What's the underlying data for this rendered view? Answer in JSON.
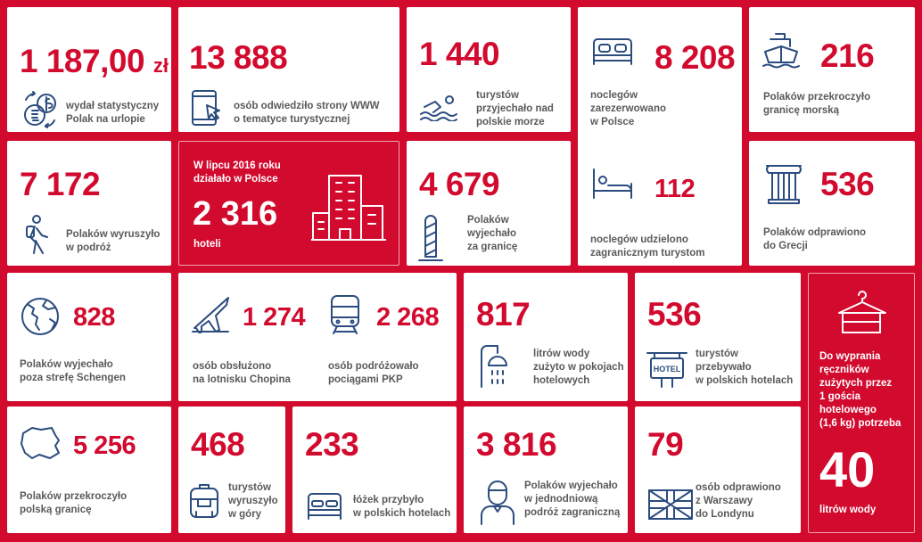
{
  "colors": {
    "accent": "#d20a2e",
    "icon": "#2b4c7e",
    "text": "#5a5a5a"
  },
  "tiles": {
    "t1": {
      "value": "1 187,00",
      "currency": "zł",
      "icon": "money-exchange-icon",
      "text": [
        "wydał statystyczny",
        "Polak na urlopie"
      ]
    },
    "t2": {
      "value": "13 888",
      "icon": "tablet-click-icon",
      "text": [
        "osób odwiedziło strony WWW",
        "o tematyce turystycznej"
      ]
    },
    "t3": {
      "value": "1 440",
      "icon": "swimmer-icon",
      "text": [
        "turystów",
        "przyjechało nad",
        "polskie morze"
      ]
    },
    "t4": {
      "value": "8 208",
      "icon": "bed-icon",
      "text": [
        "noclegów",
        "zarezerwowano",
        "w Polsce"
      ]
    },
    "t5": {
      "value": "216",
      "icon": "ship-icon",
      "text": [
        "Polaków przekroczyło",
        "granicę morską"
      ]
    },
    "t6": {
      "value": "7 172",
      "icon": "hiker-icon",
      "text": [
        "Polaków wyruszyło",
        "w podróż"
      ]
    },
    "t7": {
      "lead": [
        "W lipcu 2016 roku",
        "działało w Polsce"
      ],
      "value": "2 316",
      "unit": "hoteli",
      "icon": "hotel-building-icon"
    },
    "t8": {
      "value": "4 679",
      "icon": "border-post-icon",
      "text": [
        "Polaków",
        "wyjechało",
        "za granicę"
      ]
    },
    "t9": {
      "value": "112",
      "icon": "person-in-bed-icon",
      "text": [
        "noclegów udzielono",
        "zagranicznym turystom"
      ]
    },
    "t10": {
      "value": "536",
      "icon": "greek-column-icon",
      "text": [
        "Polaków odprawiono",
        "do Grecji"
      ]
    },
    "t11": {
      "value": "828",
      "icon": "globe-icon",
      "text": [
        "Polaków wyjechało",
        "poza strefę Schengen"
      ]
    },
    "t12": {
      "value": "1 274",
      "icon": "airplane-icon",
      "text": [
        "osób obsłużono",
        "na lotnisku Chopina"
      ]
    },
    "t13": {
      "value": "2 268",
      "icon": "train-icon",
      "text": [
        "osób podróżowało",
        "pociągami PKP"
      ]
    },
    "t14": {
      "value": "817",
      "icon": "shower-icon",
      "text": [
        "litrów wody",
        "zużyto w pokojach",
        "hotelowych"
      ]
    },
    "t15": {
      "value": "536",
      "icon": "hotel-sign-icon",
      "sign": "HOTEL",
      "text": [
        "turystów",
        "przebywało",
        "w polskich hotelach"
      ]
    },
    "t16": {
      "icon": "towel-hanger-icon",
      "text": [
        "Do wyprania",
        "ręczników",
        "zużytych przez",
        "1 gościa",
        "hotelowego",
        "(1,6 kg) potrzeba"
      ],
      "value": "40",
      "unit": "litrów wody"
    },
    "t17": {
      "value": "5 256",
      "icon": "poland-map-icon",
      "text": [
        "Polaków przekroczyło",
        "polską granicę"
      ]
    },
    "t18": {
      "value": "468",
      "icon": "backpack-icon",
      "text": [
        "turystów",
        "wyruszyło",
        "w góry"
      ]
    },
    "t19": {
      "value": "233",
      "icon": "double-bed-icon",
      "text": [
        "łóżek przybyło",
        "w polskich hotelach"
      ]
    },
    "t20": {
      "value": "3 816",
      "icon": "traveler-icon",
      "text": [
        "Polaków wyjechało",
        "w jednodniową",
        "podróż zagraniczną"
      ]
    },
    "t21": {
      "value": "79",
      "icon": "uk-flag-icon",
      "text": [
        "osób odprawiono",
        "z Warszawy",
        "do Londynu"
      ]
    }
  }
}
